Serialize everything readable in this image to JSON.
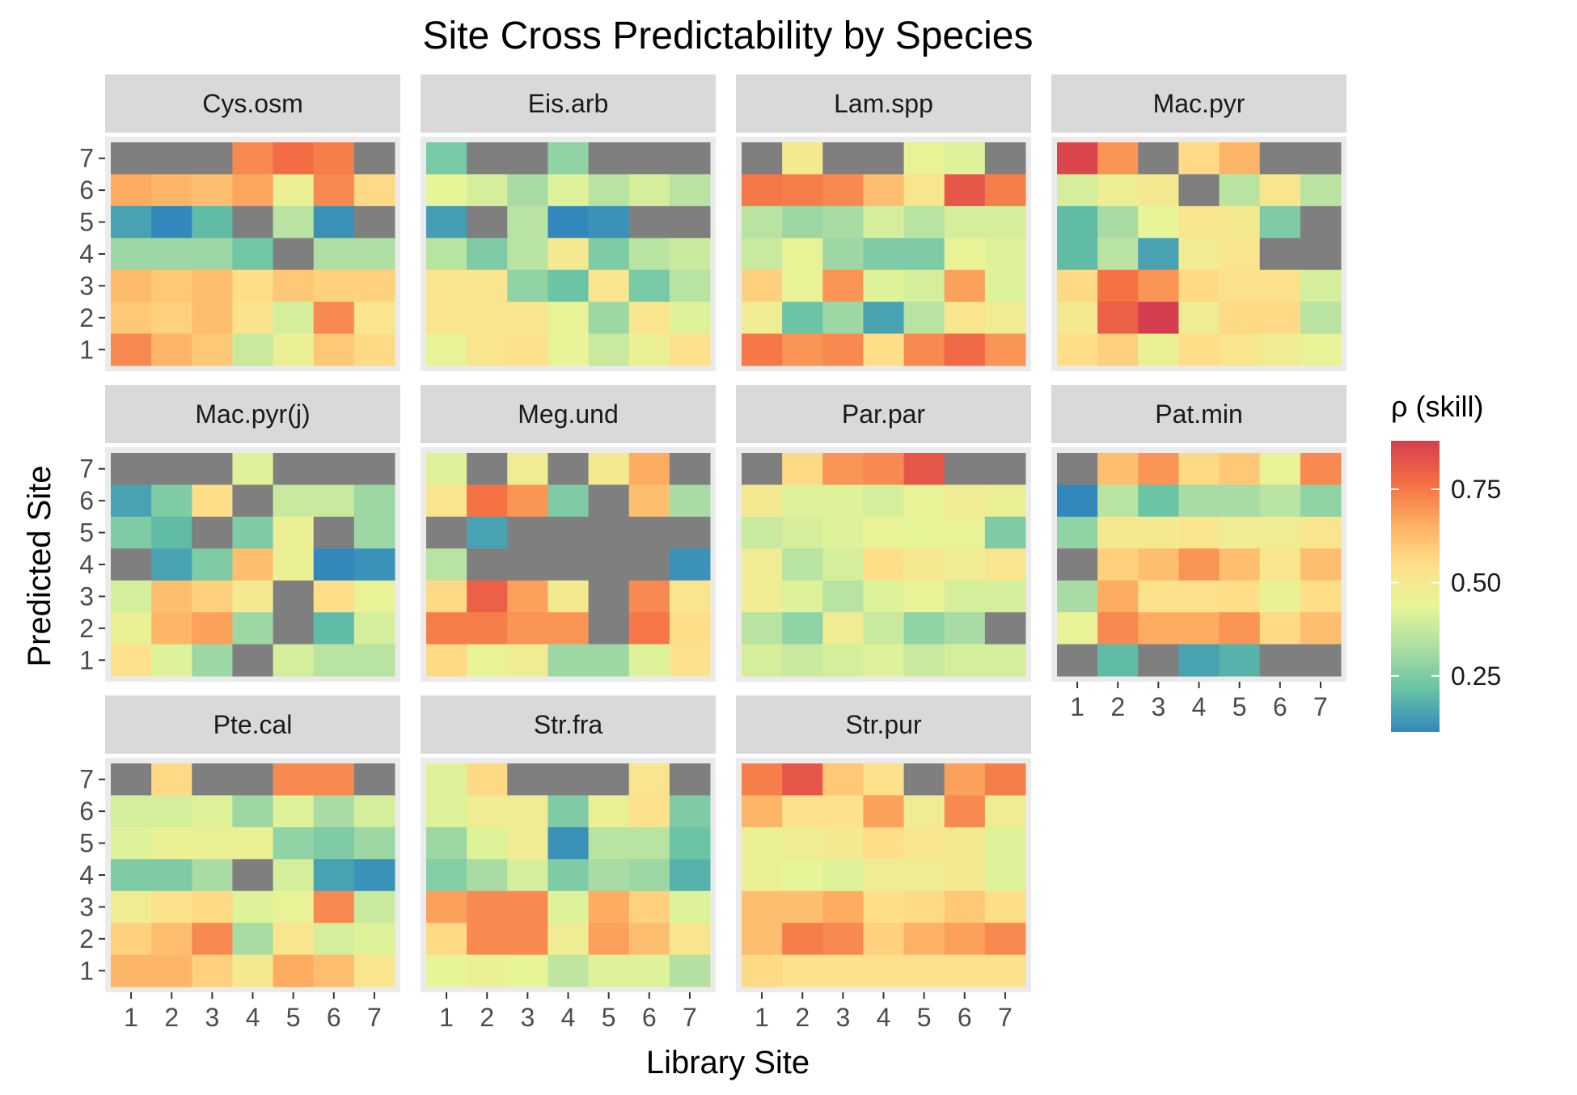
{
  "chart_data": {
    "type": "heatmap",
    "title": "Site Cross Predictability by Species",
    "xlabel": "Library Site",
    "ylabel": "Predicted Site",
    "x_ticks": [
      "1",
      "2",
      "3",
      "4",
      "5",
      "6",
      "7"
    ],
    "y_ticks": [
      "1",
      "2",
      "3",
      "4",
      "5",
      "6",
      "7"
    ],
    "legend": {
      "title": "ρ (skill)",
      "position": "right",
      "ticks": [
        {
          "value": 0.25,
          "label": "0.25"
        },
        {
          "value": 0.5,
          "label": "0.50"
        },
        {
          "value": 0.75,
          "label": "0.75"
        }
      ],
      "range": [
        0.1,
        0.88
      ]
    },
    "missing_color": "#7f7f7f",
    "palette": [
      "#3288bd",
      "#66c2a5",
      "#abdda4",
      "#e6f598",
      "#fee08b",
      "#fdae61",
      "#f46d43",
      "#d53e4f"
    ],
    "panel_grid": "on",
    "note_rows": "matrix rows are predicted site 7 (top) down to 1; columns are library site 1-7; null = no data (grey)",
    "panels": [
      {
        "name": "Cys.osm",
        "matrix": [
          [
            null,
            null,
            null,
            0.72,
            0.77,
            0.74,
            null
          ],
          [
            0.66,
            0.64,
            0.62,
            0.67,
            0.46,
            0.72,
            0.56
          ],
          [
            0.15,
            0.1,
            0.2,
            null,
            0.35,
            0.12,
            null
          ],
          [
            0.3,
            0.3,
            0.3,
            0.23,
            null,
            0.33,
            0.33
          ],
          [
            0.63,
            0.6,
            0.62,
            0.55,
            0.6,
            0.58,
            0.58
          ],
          [
            0.6,
            0.58,
            0.62,
            0.53,
            0.4,
            0.72,
            0.52
          ],
          [
            0.72,
            0.64,
            0.6,
            0.38,
            0.46,
            0.6,
            0.56
          ]
        ]
      },
      {
        "name": "Eis.arb",
        "matrix": [
          [
            0.24,
            null,
            null,
            0.28,
            null,
            null,
            null
          ],
          [
            0.44,
            0.4,
            0.32,
            0.42,
            0.35,
            0.4,
            0.35
          ],
          [
            0.14,
            null,
            0.35,
            0.08,
            0.12,
            null,
            null
          ],
          [
            0.35,
            0.25,
            0.35,
            0.5,
            0.25,
            0.35,
            0.38
          ],
          [
            0.52,
            0.52,
            0.28,
            0.22,
            0.52,
            0.24,
            0.35
          ],
          [
            0.52,
            0.52,
            0.52,
            0.45,
            0.3,
            0.52,
            0.42
          ],
          [
            0.45,
            0.52,
            0.54,
            0.44,
            0.38,
            0.46,
            0.54
          ]
        ]
      },
      {
        "name": "Lam.spp",
        "matrix": [
          [
            null,
            0.5,
            null,
            null,
            0.45,
            0.42,
            null
          ],
          [
            0.75,
            0.74,
            0.72,
            0.62,
            0.52,
            0.82,
            0.74
          ],
          [
            0.35,
            0.3,
            0.32,
            0.4,
            0.35,
            0.4,
            0.4
          ],
          [
            0.38,
            0.45,
            0.3,
            0.25,
            0.25,
            0.45,
            0.42
          ],
          [
            0.58,
            0.45,
            0.7,
            0.42,
            0.4,
            0.68,
            0.42
          ],
          [
            0.48,
            0.22,
            0.3,
            0.15,
            0.35,
            0.52,
            0.48
          ],
          [
            0.75,
            0.7,
            0.72,
            0.55,
            0.72,
            0.78,
            0.7
          ]
        ]
      },
      {
        "name": "Mac.pyr",
        "matrix": [
          [
            0.86,
            0.7,
            null,
            0.56,
            0.64,
            null,
            null
          ],
          [
            0.4,
            0.47,
            0.5,
            null,
            0.35,
            0.52,
            0.35
          ],
          [
            0.2,
            0.32,
            0.44,
            0.52,
            0.5,
            0.25,
            null
          ],
          [
            0.2,
            0.35,
            0.15,
            0.48,
            0.52,
            null,
            null
          ],
          [
            0.56,
            0.76,
            0.7,
            0.56,
            0.54,
            0.54,
            0.4
          ],
          [
            0.5,
            0.8,
            0.88,
            0.48,
            0.56,
            0.56,
            0.35
          ],
          [
            0.55,
            0.58,
            0.46,
            0.55,
            0.52,
            0.48,
            0.45
          ]
        ]
      },
      {
        "name": "Mac.pyr(j)",
        "matrix": [
          [
            null,
            null,
            null,
            0.42,
            null,
            null,
            null
          ],
          [
            0.15,
            0.25,
            0.55,
            null,
            0.38,
            0.38,
            0.3
          ],
          [
            0.25,
            0.2,
            null,
            0.25,
            0.46,
            null,
            0.3
          ],
          [
            null,
            0.15,
            0.25,
            0.62,
            0.46,
            0.08,
            0.12
          ],
          [
            0.4,
            0.62,
            0.58,
            0.5,
            null,
            0.55,
            0.45
          ],
          [
            0.46,
            0.64,
            0.68,
            0.3,
            null,
            0.2,
            0.4
          ],
          [
            0.54,
            0.42,
            0.3,
            null,
            0.4,
            0.35,
            0.35
          ]
        ]
      },
      {
        "name": "Meg.und",
        "matrix": [
          [
            0.42,
            null,
            0.48,
            null,
            0.5,
            0.66,
            null
          ],
          [
            0.52,
            0.76,
            0.7,
            0.25,
            null,
            0.62,
            0.32
          ],
          [
            null,
            0.15,
            null,
            null,
            null,
            null,
            null
          ],
          [
            0.35,
            null,
            null,
            null,
            null,
            null,
            0.12
          ],
          [
            0.56,
            0.8,
            0.68,
            0.5,
            null,
            0.72,
            0.52
          ],
          [
            0.74,
            0.74,
            0.7,
            0.7,
            null,
            0.75,
            0.55
          ],
          [
            0.56,
            0.45,
            0.48,
            0.3,
            0.3,
            0.42,
            0.54
          ]
        ]
      },
      {
        "name": "Par.par",
        "matrix": [
          [
            null,
            0.56,
            0.7,
            0.72,
            0.82,
            null,
            null
          ],
          [
            0.5,
            0.42,
            0.42,
            0.4,
            0.45,
            0.48,
            0.46
          ],
          [
            0.38,
            0.4,
            0.42,
            0.45,
            0.44,
            0.45,
            0.25
          ],
          [
            0.48,
            0.35,
            0.4,
            0.55,
            0.5,
            0.48,
            0.52
          ],
          [
            0.48,
            0.42,
            0.35,
            0.42,
            0.45,
            0.4,
            0.4
          ],
          [
            0.35,
            0.28,
            0.48,
            0.38,
            0.28,
            0.32,
            null
          ],
          [
            0.4,
            0.38,
            0.4,
            0.42,
            0.38,
            0.4,
            0.4
          ]
        ]
      },
      {
        "name": "Pat.min",
        "matrix": [
          [
            null,
            0.62,
            0.7,
            0.56,
            0.6,
            0.45,
            0.72
          ],
          [
            0.1,
            0.35,
            0.22,
            0.32,
            0.32,
            0.35,
            0.28
          ],
          [
            0.28,
            0.5,
            0.5,
            0.52,
            0.48,
            0.48,
            0.52
          ],
          [
            null,
            0.58,
            0.62,
            0.7,
            0.62,
            0.52,
            0.62
          ],
          [
            0.32,
            0.66,
            0.54,
            0.54,
            0.55,
            0.46,
            0.55
          ],
          [
            0.45,
            0.72,
            0.66,
            0.66,
            0.7,
            0.56,
            0.62
          ],
          [
            null,
            0.2,
            null,
            0.15,
            0.18,
            null,
            null
          ]
        ]
      },
      {
        "name": "Pte.cal",
        "matrix": [
          [
            null,
            0.56,
            null,
            null,
            0.72,
            0.72,
            null
          ],
          [
            0.4,
            0.4,
            0.42,
            0.3,
            0.42,
            0.32,
            0.4
          ],
          [
            0.42,
            0.46,
            0.46,
            0.46,
            0.28,
            0.25,
            0.3
          ],
          [
            0.25,
            0.25,
            0.32,
            null,
            0.4,
            0.15,
            0.12
          ],
          [
            0.48,
            0.54,
            0.56,
            0.42,
            0.45,
            0.72,
            0.38
          ],
          [
            0.58,
            0.62,
            0.72,
            0.32,
            0.52,
            0.4,
            0.42
          ],
          [
            0.64,
            0.64,
            0.58,
            0.5,
            0.66,
            0.62,
            0.52
          ]
        ]
      },
      {
        "name": "Str.fra",
        "matrix": [
          [
            0.42,
            0.56,
            null,
            null,
            null,
            0.52,
            null
          ],
          [
            0.42,
            0.48,
            0.48,
            0.25,
            0.46,
            0.54,
            0.25
          ],
          [
            0.3,
            0.42,
            0.48,
            0.12,
            0.35,
            0.35,
            0.22
          ],
          [
            0.26,
            0.32,
            0.4,
            0.25,
            0.32,
            0.3,
            0.18
          ],
          [
            0.68,
            0.72,
            0.72,
            0.42,
            0.66,
            0.58,
            0.42
          ],
          [
            0.56,
            0.72,
            0.72,
            0.48,
            0.68,
            0.62,
            0.52
          ],
          [
            0.44,
            0.46,
            0.44,
            0.36,
            0.42,
            0.42,
            0.34
          ]
        ]
      },
      {
        "name": "Str.pur",
        "matrix": [
          [
            0.74,
            0.82,
            0.6,
            0.54,
            null,
            0.68,
            0.74
          ],
          [
            0.64,
            0.54,
            0.54,
            0.68,
            0.48,
            0.72,
            0.48
          ],
          [
            0.46,
            0.48,
            0.5,
            0.55,
            0.52,
            0.5,
            0.42
          ],
          [
            0.46,
            0.44,
            0.42,
            0.48,
            0.48,
            0.5,
            0.42
          ],
          [
            0.62,
            0.62,
            0.66,
            0.55,
            0.56,
            0.6,
            0.55
          ],
          [
            0.62,
            0.74,
            0.72,
            0.58,
            0.65,
            0.68,
            0.72
          ],
          [
            0.56,
            0.54,
            0.54,
            0.54,
            0.54,
            0.54,
            0.54
          ]
        ]
      }
    ]
  }
}
